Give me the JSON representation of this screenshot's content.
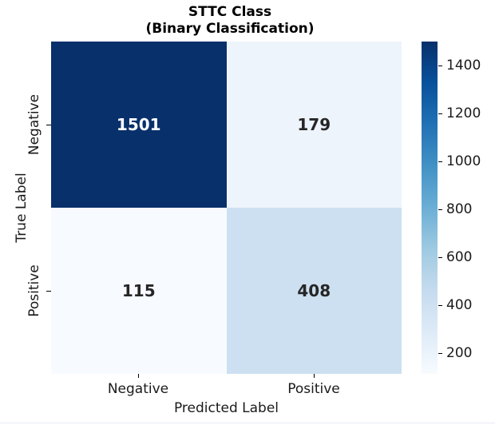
{
  "title": {
    "line1": "STTC Class",
    "line2": "(Binary Classification)"
  },
  "chart_data": {
    "type": "heatmap",
    "title": "STTC Class (Binary Classification)",
    "xlabel": "Predicted Label",
    "ylabel": "True Label",
    "x_categories": [
      "Negative",
      "Positive"
    ],
    "y_categories": [
      "Negative",
      "Positive"
    ],
    "values": [
      [
        1501,
        179
      ],
      [
        115,
        408
      ]
    ],
    "vmin": 115,
    "vmax": 1501,
    "colormap": "Blues",
    "colormap_stops": [
      "#f7fbff",
      "#deebf7",
      "#c6dbef",
      "#9ecae1",
      "#6baed6",
      "#4292c6",
      "#2171b5",
      "#08519c",
      "#08306b"
    ],
    "colorbar_ticks": [
      200,
      400,
      600,
      800,
      1000,
      1200,
      1400
    ],
    "legend_position": "right",
    "grid": false,
    "cell_colors": [
      [
        "#08306b",
        "#eef4fb"
      ],
      [
        "#f7fbff",
        "#cde0f1"
      ]
    ],
    "cell_text_colors": [
      [
        "#ffffff",
        "#262626"
      ],
      [
        "#262626",
        "#262626"
      ]
    ]
  },
  "colors": {
    "background": "#ffffff",
    "title_text": "#000000",
    "label_text": "#1a1a1a",
    "tick_mark": "#000000",
    "bottom_edge_line": "#e9ebf3"
  }
}
